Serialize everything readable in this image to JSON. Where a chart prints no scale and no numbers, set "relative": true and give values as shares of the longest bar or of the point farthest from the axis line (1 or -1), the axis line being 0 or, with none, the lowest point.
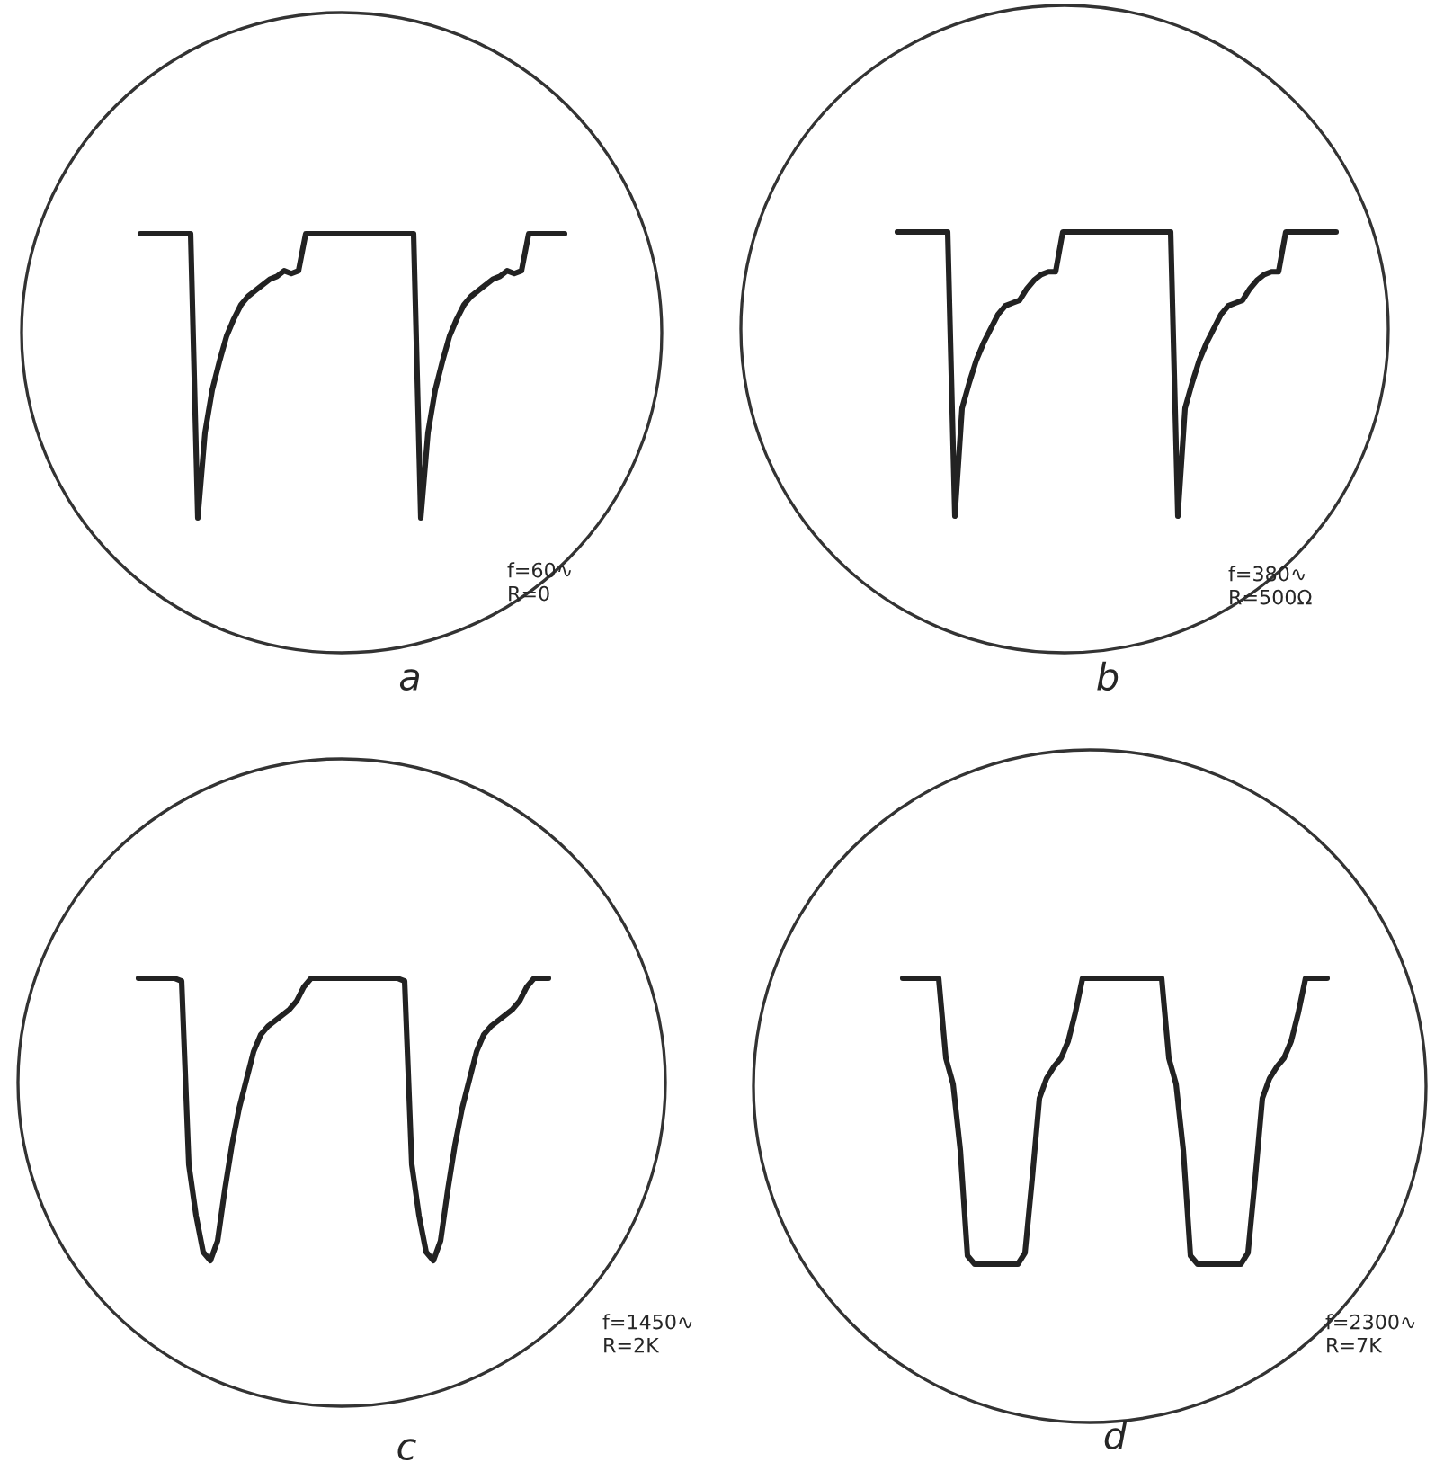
{
  "chart_data": [
    {
      "type": "line",
      "title": "a",
      "relative": true,
      "color": "#222222",
      "annotations": [
        "f=60∿",
        "R=0"
      ],
      "categories": [
        null,
        null,
        null,
        null,
        null,
        null,
        null,
        null,
        null,
        null,
        null,
        null,
        null,
        null,
        null,
        null,
        null,
        null,
        null,
        null,
        null,
        null,
        null,
        null,
        null,
        null,
        null,
        null,
        null,
        null,
        null,
        null,
        null,
        null,
        null,
        null,
        null,
        null,
        null,
        null,
        null,
        null,
        null,
        null,
        null,
        null,
        null,
        null,
        null,
        null,
        null,
        null,
        null,
        null,
        null,
        null,
        null,
        null,
        null,
        null
      ],
      "values": [
        1,
        1,
        1,
        1,
        1,
        1,
        1,
        1,
        0,
        0.3,
        0.45,
        0.55,
        0.64,
        0.7,
        0.75,
        0.78,
        0.8,
        0.82,
        0.84,
        0.85,
        0.87,
        0.86,
        0.87,
        1,
        1,
        1,
        1,
        1,
        1,
        1,
        1,
        1,
        1,
        1,
        1,
        1,
        1,
        1,
        1,
        0,
        0.3,
        0.45,
        0.55,
        0.64,
        0.7,
        0.75,
        0.78,
        0.8,
        0.82,
        0.84,
        0.85,
        0.87,
        0.86,
        0.87,
        1,
        1,
        1,
        1,
        1,
        1
      ]
    },
    {
      "type": "line",
      "title": "b",
      "relative": true,
      "color": "#222222",
      "annotations": [
        "f=380∿",
        "R=500Ω"
      ],
      "categories": [
        null,
        null,
        null,
        null,
        null,
        null,
        null,
        null,
        null,
        null,
        null,
        null,
        null,
        null,
        null,
        null,
        null,
        null,
        null,
        null,
        null,
        null,
        null,
        null,
        null,
        null,
        null,
        null,
        null,
        null,
        null,
        null,
        null,
        null,
        null,
        null,
        null,
        null,
        null,
        null,
        null,
        null,
        null,
        null,
        null,
        null,
        null,
        null,
        null,
        null,
        null,
        null,
        null,
        null,
        null,
        null,
        null,
        null,
        null,
        null,
        null,
        null
      ],
      "values": [
        1,
        1,
        1,
        1,
        1,
        1,
        1,
        1,
        0,
        0.38,
        0.47,
        0.55,
        0.61,
        0.66,
        0.71,
        0.74,
        0.75,
        0.76,
        0.8,
        0.83,
        0.85,
        0.86,
        0.86,
        1,
        1,
        1,
        1,
        1,
        1,
        1,
        1,
        1,
        1,
        1,
        1,
        1,
        1,
        1,
        1,
        0,
        0.38,
        0.47,
        0.55,
        0.61,
        0.66,
        0.71,
        0.74,
        0.75,
        0.76,
        0.8,
        0.83,
        0.85,
        0.86,
        0.86,
        1,
        1,
        1,
        1,
        1,
        1,
        1,
        1
      ]
    },
    {
      "type": "line",
      "title": "c",
      "relative": true,
      "color": "#222222",
      "annotations": [
        "f=1450∿",
        "R=2K"
      ],
      "categories": [
        null,
        null,
        null,
        null,
        null,
        null,
        null,
        null,
        null,
        null,
        null,
        null,
        null,
        null,
        null,
        null,
        null,
        null,
        null,
        null,
        null,
        null,
        null,
        null,
        null,
        null,
        null,
        null,
        null,
        null,
        null,
        null,
        null,
        null,
        null,
        null,
        null,
        null,
        null,
        null,
        null,
        null,
        null,
        null,
        null,
        null,
        null,
        null,
        null,
        null,
        null,
        null,
        null,
        null,
        null,
        null,
        null,
        null
      ],
      "values": [
        1,
        1,
        1,
        1,
        1,
        1,
        0.99,
        0.34,
        0.16,
        0.03,
        0,
        0.07,
        0.25,
        0.41,
        0.54,
        0.64,
        0.74,
        0.8,
        0.83,
        0.85,
        0.87,
        0.89,
        0.92,
        0.97,
        1,
        1,
        1,
        1,
        1,
        1,
        1,
        1,
        1,
        1,
        1,
        1,
        1,
        0.99,
        0.34,
        0.16,
        0.03,
        0,
        0.07,
        0.25,
        0.41,
        0.54,
        0.64,
        0.74,
        0.8,
        0.83,
        0.85,
        0.87,
        0.89,
        0.92,
        0.97,
        1,
        1,
        1
      ]
    },
    {
      "type": "line",
      "title": "d",
      "relative": true,
      "color": "#222222",
      "annotations": [
        "f=2300∿",
        "R=7K"
      ],
      "categories": [
        null,
        null,
        null,
        null,
        null,
        null,
        null,
        null,
        null,
        null,
        null,
        null,
        null,
        null,
        null,
        null,
        null,
        null,
        null,
        null,
        null,
        null,
        null,
        null,
        null,
        null,
        null,
        null,
        null,
        null,
        null,
        null,
        null,
        null,
        null,
        null,
        null,
        null,
        null,
        null,
        null,
        null,
        null,
        null,
        null,
        null,
        null,
        null,
        null,
        null,
        null,
        null,
        null,
        null,
        null,
        null,
        null,
        null,
        null,
        null
      ],
      "values": [
        1,
        1,
        1,
        1,
        1,
        1,
        0.72,
        0.63,
        0.4,
        0.03,
        0,
        0,
        0,
        0,
        0,
        0,
        0,
        0.04,
        0.3,
        0.58,
        0.65,
        0.69,
        0.72,
        0.78,
        0.88,
        1,
        1,
        1,
        1,
        1,
        1,
        1,
        1,
        1,
        1,
        1,
        1,
        0.72,
        0.63,
        0.4,
        0.03,
        0,
        0,
        0,
        0,
        0,
        0,
        0,
        0.04,
        0.3,
        0.58,
        0.65,
        0.69,
        0.72,
        0.78,
        0.88,
        1,
        1,
        1,
        1
      ]
    }
  ]
}
